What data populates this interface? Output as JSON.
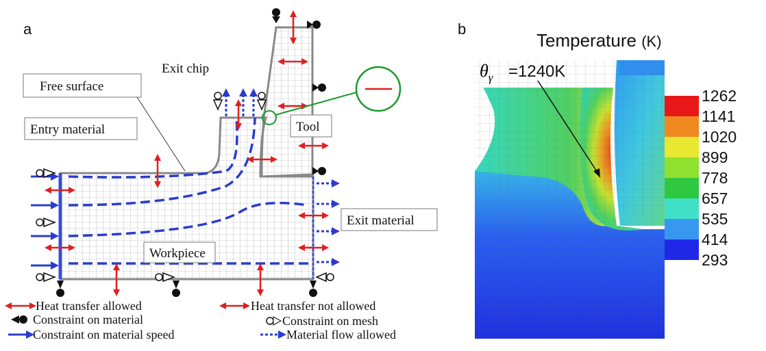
{
  "panel_a": {
    "label": "a",
    "callouts": {
      "free_surface": "Free surface",
      "exit_chip": "Exit chip",
      "entry_material": "Entry material",
      "tool": "Tool",
      "exit_material": "Exit material",
      "workpiece": "Workpiece"
    },
    "legend": {
      "heat_allowed": "Heat transfer allowed",
      "heat_not_allowed": "Heat transfer not allowed",
      "constraint_material": "Constraint on material",
      "constraint_mesh": "Constraint on mesh",
      "constraint_speed": "Constraint on material speed",
      "flow_allowed": "Material flow allowed"
    }
  },
  "panel_b": {
    "label": "b",
    "title": "Temperature",
    "unit": "(K)",
    "annotation": {
      "symbol": "θ",
      "subscript": "γ",
      "text": "=1240K"
    },
    "colorbar_ticks": [
      1262,
      1141,
      1020,
      899,
      778,
      657,
      535,
      414,
      293
    ]
  }
}
